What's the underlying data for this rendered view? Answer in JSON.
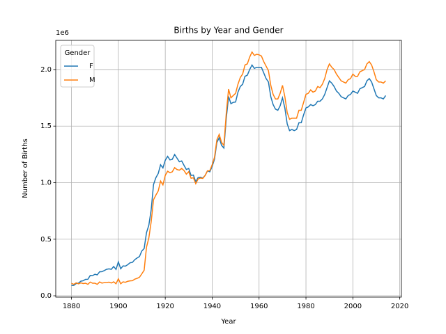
{
  "chart_data": {
    "type": "line",
    "title": "Births by Year and Gender",
    "xlabel": "Year",
    "ylabel": "Number of Births",
    "y_offset_label": "1e6",
    "legend_title": "Gender",
    "legend_loc": "upper left",
    "grid": true,
    "x": [
      1880,
      1881,
      1882,
      1883,
      1884,
      1885,
      1886,
      1887,
      1888,
      1889,
      1890,
      1891,
      1892,
      1893,
      1894,
      1895,
      1896,
      1897,
      1898,
      1899,
      1900,
      1901,
      1902,
      1903,
      1904,
      1905,
      1906,
      1907,
      1908,
      1909,
      1910,
      1911,
      1912,
      1913,
      1914,
      1915,
      1916,
      1917,
      1918,
      1919,
      1920,
      1921,
      1922,
      1923,
      1924,
      1925,
      1926,
      1927,
      1928,
      1929,
      1930,
      1931,
      1932,
      1933,
      1934,
      1935,
      1936,
      1937,
      1938,
      1939,
      1940,
      1941,
      1942,
      1943,
      1944,
      1945,
      1946,
      1947,
      1948,
      1949,
      1950,
      1951,
      1952,
      1953,
      1954,
      1955,
      1956,
      1957,
      1958,
      1959,
      1960,
      1961,
      1962,
      1963,
      1964,
      1965,
      1966,
      1967,
      1968,
      1969,
      1970,
      1971,
      1972,
      1973,
      1974,
      1975,
      1976,
      1977,
      1978,
      1979,
      1980,
      1981,
      1982,
      1983,
      1984,
      1985,
      1986,
      1987,
      1988,
      1989,
      1990,
      1991,
      1992,
      1993,
      1994,
      1995,
      1996,
      1997,
      1998,
      1999,
      2000,
      2001,
      2002,
      2003,
      2004,
      2005,
      2006,
      2007,
      2008,
      2009,
      2010,
      2011,
      2012,
      2013,
      2014
    ],
    "series": [
      {
        "name": "F",
        "color": "#1f77b4",
        "values": [
          0.091,
          0.092,
          0.108,
          0.112,
          0.129,
          0.133,
          0.145,
          0.146,
          0.179,
          0.178,
          0.19,
          0.185,
          0.212,
          0.213,
          0.223,
          0.234,
          0.238,
          0.234,
          0.259,
          0.233,
          0.3,
          0.239,
          0.264,
          0.262,
          0.275,
          0.292,
          0.295,
          0.319,
          0.334,
          0.347,
          0.396,
          0.418,
          0.558,
          0.624,
          0.761,
          0.984,
          1.044,
          1.081,
          1.158,
          1.13,
          1.198,
          1.233,
          1.201,
          1.206,
          1.249,
          1.217,
          1.185,
          1.192,
          1.153,
          1.116,
          1.126,
          1.064,
          1.067,
          1.008,
          1.045,
          1.048,
          1.041,
          1.064,
          1.104,
          1.096,
          1.143,
          1.208,
          1.354,
          1.397,
          1.33,
          1.306,
          1.565,
          1.762,
          1.698,
          1.71,
          1.713,
          1.8,
          1.85,
          1.87,
          1.94,
          1.95,
          2.0,
          2.04,
          2.01,
          2.02,
          2.02,
          2.02,
          1.97,
          1.92,
          1.89,
          1.76,
          1.69,
          1.65,
          1.64,
          1.68,
          1.75,
          1.66,
          1.52,
          1.46,
          1.47,
          1.46,
          1.47,
          1.53,
          1.53,
          1.6,
          1.66,
          1.67,
          1.69,
          1.68,
          1.69,
          1.72,
          1.72,
          1.74,
          1.78,
          1.84,
          1.9,
          1.88,
          1.85,
          1.81,
          1.79,
          1.76,
          1.75,
          1.74,
          1.77,
          1.78,
          1.81,
          1.8,
          1.79,
          1.83,
          1.84,
          1.85,
          1.9,
          1.92,
          1.89,
          1.83,
          1.77,
          1.75,
          1.75,
          1.74,
          1.77
        ]
      },
      {
        "name": "M",
        "color": "#ff7f0e",
        "values": [
          0.11,
          0.101,
          0.114,
          0.105,
          0.114,
          0.108,
          0.111,
          0.101,
          0.121,
          0.111,
          0.111,
          0.101,
          0.122,
          0.112,
          0.116,
          0.117,
          0.12,
          0.113,
          0.123,
          0.106,
          0.15,
          0.106,
          0.123,
          0.119,
          0.128,
          0.132,
          0.133,
          0.147,
          0.154,
          0.164,
          0.194,
          0.226,
          0.43,
          0.512,
          0.655,
          0.849,
          0.89,
          0.926,
          1.014,
          0.98,
          1.064,
          1.101,
          1.088,
          1.096,
          1.133,
          1.116,
          1.11,
          1.126,
          1.107,
          1.075,
          1.097,
          1.039,
          1.043,
          0.991,
          1.032,
          1.041,
          1.037,
          1.063,
          1.104,
          1.106,
          1.158,
          1.225,
          1.378,
          1.427,
          1.356,
          1.33,
          1.609,
          1.827,
          1.75,
          1.77,
          1.79,
          1.87,
          1.93,
          1.96,
          2.04,
          2.05,
          2.11,
          2.155,
          2.125,
          2.135,
          2.13,
          2.12,
          2.07,
          2.03,
          1.99,
          1.86,
          1.78,
          1.74,
          1.74,
          1.79,
          1.86,
          1.76,
          1.62,
          1.56,
          1.57,
          1.57,
          1.57,
          1.64,
          1.64,
          1.71,
          1.78,
          1.79,
          1.82,
          1.8,
          1.81,
          1.85,
          1.84,
          1.87,
          1.92,
          2.0,
          2.05,
          2.02,
          2.0,
          1.96,
          1.93,
          1.9,
          1.89,
          1.88,
          1.91,
          1.92,
          1.96,
          1.94,
          1.94,
          1.98,
          1.99,
          2.0,
          2.05,
          2.07,
          2.04,
          1.98,
          1.91,
          1.89,
          1.89,
          1.88,
          1.9
        ]
      }
    ],
    "xlim": [
      1873.3,
      2020.7
    ],
    "xticks": [
      1880,
      1900,
      1920,
      1940,
      1960,
      1980,
      2000,
      2020
    ],
    "ylim": [
      -0.012,
      2.258
    ],
    "yticks": [
      {
        "value": 0,
        "label": "0.0"
      },
      0.5,
      {
        "value": 1,
        "label": "1.0"
      },
      1.5,
      {
        "value": 2,
        "label": "2.0"
      }
    ]
  }
}
